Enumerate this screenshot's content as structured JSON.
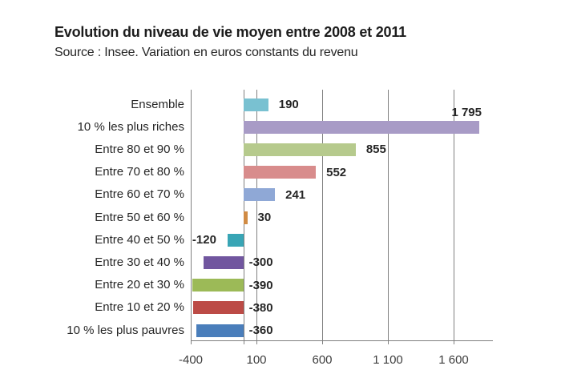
{
  "header": {
    "title": "Evolution du niveau de vie moyen entre 2008  et 2011",
    "subtitle": "Source : Insee. Variation en euros constants du revenu"
  },
  "chart_data": {
    "type": "bar",
    "orientation": "horizontal",
    "title": "Evolution du niveau de vie moyen entre 2008 et 2011",
    "subtitle": "Source : Insee. Variation en euros constants du revenu",
    "categories": [
      "Ensemble",
      "10 % les plus riches",
      "Entre 80 et 90 %",
      "Entre 70 et 80 %",
      "Entre 60 et 70 %",
      "Entre 50 et 60 %",
      "Entre 40 et 50 %",
      "Entre 30 et 40 %",
      "Entre 20 et 30 %",
      "Entre 10 et 20 %",
      "10 % les plus pauvres"
    ],
    "values": [
      190,
      1795,
      855,
      552,
      241,
      30,
      -120,
      -300,
      -390,
      -380,
      -360
    ],
    "value_labels": [
      "190",
      "1 795",
      "855",
      "552",
      "241",
      "30",
      "-120",
      "-300",
      "-390",
      "-380",
      "-360"
    ],
    "bar_colors": [
      "#79C1D1",
      "#A89BC6",
      "#B6CA8D",
      "#D88C8C",
      "#8FA8D6",
      "#D08B44",
      "#38A5B5",
      "#71569F",
      "#9CBA57",
      "#BC4B46",
      "#4A7EBB"
    ],
    "label_placement": [
      "right",
      "above-end",
      "right",
      "right",
      "right",
      "right",
      "left-of-bar",
      "axis-right",
      "axis-right",
      "axis-right",
      "axis-right"
    ],
    "x_axis": {
      "range": [
        -400,
        1900
      ],
      "ticks": [
        {
          "value": -400,
          "label": "-400"
        },
        {
          "value": 100,
          "label": "100"
        },
        {
          "value": 600,
          "label": "600"
        },
        {
          "value": 1100,
          "label": "1 100"
        },
        {
          "value": 1600,
          "label": "1 600"
        }
      ],
      "gridlines": true
    },
    "legend": null,
    "colors": {
      "gridline": "#808080",
      "axis_line": "#808080",
      "category_text": "#262626",
      "value_text": "#262626",
      "tick_text": "#3d3d3d",
      "background": "#ffffff"
    }
  }
}
